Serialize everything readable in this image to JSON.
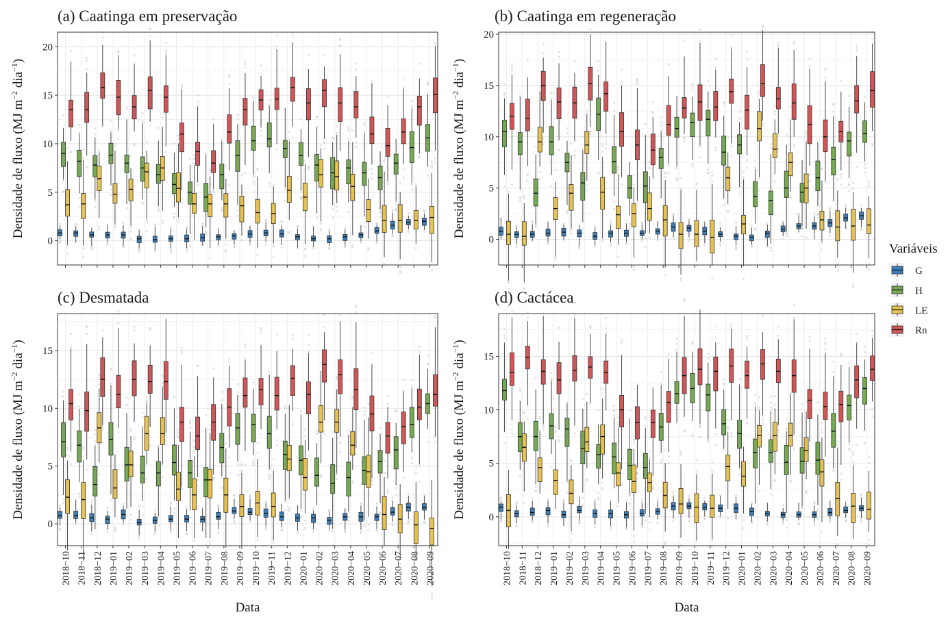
{
  "figure": {
    "legend_title": "Variáveis",
    "legend_items": [
      {
        "label": "G",
        "color": "#3f7fb8"
      },
      {
        "label": "H",
        "color": "#76a953"
      },
      {
        "label": "LE",
        "color": "#e6c254"
      },
      {
        "label": "Rn",
        "color": "#d35555"
      }
    ],
    "months": [
      "2018−10",
      "2018−11",
      "2018−12",
      "2019−01",
      "2019−02",
      "2019−03",
      "2019−04",
      "2019−05",
      "2019−06",
      "2019−07",
      "2019−08",
      "2019−09",
      "2019−10",
      "2019−11",
      "2019−12",
      "2020−01",
      "2020−02",
      "2020−03",
      "2020−04",
      "2020−05",
      "2020−06",
      "2020−07",
      "2020−08",
      "2020−09"
    ],
    "xlabel": "Data",
    "ylabel_main": "Densidade de fluxo",
    "ylabel_unit": "(MJ m",
    "ylabel_exp1": "−2",
    "ylabel_mid": " dia",
    "ylabel_exp2": "−1",
    "ylabel_end": ")"
  },
  "chart_data": [
    {
      "type": "box",
      "title": "(a) Caatinga em preservação",
      "ylim": [
        -2.5,
        21.5
      ],
      "yticks": [
        0,
        5,
        10,
        15,
        20
      ],
      "series": [
        {
          "name": "G",
          "medians": [
            0.8,
            0.8,
            0.6,
            0.6,
            0.6,
            0.2,
            0.1,
            0.2,
            0.2,
            0.3,
            0.4,
            0.5,
            0.7,
            0.8,
            0.7,
            0.4,
            0.2,
            0.2,
            0.4,
            0.6,
            1.0,
            1.6,
            1.9,
            2.0
          ]
        },
        {
          "name": "H",
          "medians": [
            9.0,
            8.2,
            7.8,
            8.8,
            8.0,
            7.5,
            6.8,
            5.8,
            5.0,
            4.5,
            6.8,
            8.8,
            10.3,
            10.5,
            9.5,
            8.8,
            7.8,
            7.0,
            7.5,
            7.0,
            6.5,
            8.0,
            9.6,
            10.6
          ]
        },
        {
          "name": "LE",
          "medians": [
            3.7,
            3.8,
            6.4,
            4.8,
            5.3,
            7.1,
            7.5,
            5.4,
            3.8,
            3.8,
            3.8,
            3.6,
            2.9,
            2.8,
            5.2,
            4.5,
            6.8,
            6.6,
            5.6,
            3.2,
            2.1,
            2.1,
            2.1,
            2.4
          ]
        },
        {
          "name": "Rn",
          "medians": [
            13.5,
            13.5,
            15.8,
            14.8,
            13.8,
            15.5,
            14.8,
            11.0,
            9.2,
            8.0,
            11.2,
            13.5,
            14.5,
            14.6,
            15.8,
            14.2,
            15.5,
            14.2,
            13.8,
            11.0,
            9.8,
            11.2,
            13.8,
            15.1
          ]
        }
      ]
    },
    {
      "type": "box",
      "title": "(b) Caatinga em regeneração",
      "ylim": [
        -2.5,
        20.2
      ],
      "yticks": [
        0,
        5,
        10,
        15,
        20
      ],
      "series": [
        {
          "name": "G",
          "medians": [
            0.8,
            0.5,
            0.5,
            0.6,
            0.7,
            0.6,
            0.3,
            0.6,
            0.6,
            0.6,
            0.8,
            1.2,
            1.1,
            0.8,
            0.5,
            0.3,
            0.2,
            0.6,
            1.0,
            1.3,
            1.3,
            1.6,
            2.1,
            2.3
          ]
        },
        {
          "name": "H",
          "medians": [
            10.5,
            9.5,
            4.5,
            9.5,
            7.5,
            5.5,
            12.2,
            7.6,
            5.0,
            5.2,
            8.0,
            10.8,
            11.4,
            11.7,
            8.5,
            9.2,
            4.2,
            3.8,
            5.0,
            4.6,
            6.0,
            7.8,
            9.6,
            10.3
          ]
        },
        {
          "name": "LE",
          "medians": [
            0.5,
            0.3,
            9.5,
            3.0,
            4.5,
            9.2,
            4.6,
            2.4,
            2.5,
            3.0,
            1.9,
            0.5,
            0.5,
            0.2,
            6.0,
            1.5,
            10.8,
            8.8,
            7.5,
            5.0,
            1.9,
            1.2,
            1.3,
            1.4
          ]
        },
        {
          "name": "Rn",
          "medians": [
            12.0,
            11.8,
            15.0,
            13.4,
            13.3,
            15.2,
            14.2,
            10.5,
            9.2,
            8.7,
            11.2,
            12.8,
            13.4,
            12.9,
            14.4,
            12.6,
            15.2,
            13.7,
            13.3,
            11.2,
            10.0,
            10.5,
            13.5,
            14.5
          ]
        }
      ]
    },
    {
      "type": "box",
      "title": "(c) Desmatada",
      "ylim": [
        -1.9,
        18.2
      ],
      "yticks": [
        0,
        5,
        10,
        15
      ],
      "series": [
        {
          "name": "G",
          "medians": [
            0.7,
            0.7,
            0.5,
            0.4,
            0.8,
            0.1,
            0.3,
            0.4,
            0.4,
            0.4,
            0.6,
            1.1,
            1.0,
            0.9,
            0.6,
            0.5,
            0.5,
            0.3,
            0.6,
            0.6,
            0.6,
            1.0,
            1.4,
            1.4
          ]
        },
        {
          "name": "H",
          "medians": [
            7.1,
            6.8,
            3.4,
            7.3,
            5.1,
            4.4,
            4.4,
            5.3,
            4.4,
            3.8,
            6.6,
            8.3,
            8.6,
            7.8,
            6.0,
            5.5,
            4.2,
            3.5,
            4.0,
            4.6,
            5.4,
            6.4,
            8.6,
            10.4
          ]
        },
        {
          "name": "LE",
          "medians": [
            2.3,
            2.1,
            8.3,
            3.1,
            5.1,
            7.8,
            7.8,
            3.0,
            2.5,
            3.8,
            2.5,
            1.5,
            1.8,
            1.5,
            5.6,
            4.0,
            8.8,
            8.8,
            6.8,
            4.5,
            0.8,
            0.4,
            -0.1,
            -0.4
          ]
        },
        {
          "name": "Rn",
          "medians": [
            10.4,
            9.8,
            12.5,
            11.2,
            12.5,
            12.3,
            12.3,
            8.8,
            7.6,
            8.8,
            10.1,
            11.1,
            11.6,
            11.1,
            12.6,
            11.2,
            13.8,
            12.9,
            11.6,
            9.5,
            7.6,
            8.4,
            10.1,
            11.2
          ]
        }
      ]
    },
    {
      "type": "box",
      "title": "(d) Cactácea",
      "ylim": [
        -2.7,
        19.0
      ],
      "yticks": [
        0,
        5,
        10,
        15
      ],
      "series": [
        {
          "name": "G",
          "medians": [
            0.9,
            0.3,
            0.4,
            0.6,
            0.2,
            0.6,
            0.3,
            0.3,
            0.2,
            0.3,
            0.5,
            1.0,
            1.0,
            0.9,
            0.8,
            0.8,
            0.5,
            0.3,
            0.2,
            0.2,
            0.2,
            0.4,
            0.6,
            0.8
          ]
        },
        {
          "name": "H",
          "medians": [
            11.8,
            7.5,
            7.5,
            8.5,
            8.2,
            6.4,
            5.8,
            5.6,
            4.8,
            4.6,
            8.4,
            11.5,
            12.0,
            11.4,
            8.7,
            7.8,
            6.0,
            6.0,
            5.1,
            5.2,
            5.3,
            8.0,
            10.4,
            12.0
          ]
        },
        {
          "name": "LE",
          "medians": [
            0.6,
            6.5,
            4.6,
            3.4,
            2.2,
            7.0,
            7.5,
            4.1,
            3.3,
            3.2,
            2.0,
            1.2,
            0.9,
            0.8,
            4.7,
            3.8,
            7.6,
            7.6,
            7.6,
            6.2,
            4.2,
            1.7,
            1.0,
            0.7
          ]
        },
        {
          "name": "Rn",
          "medians": [
            13.5,
            14.9,
            13.6,
            12.8,
            13.7,
            14.0,
            13.5,
            10.0,
            8.8,
            8.8,
            10.7,
            13.2,
            13.8,
            13.6,
            14.1,
            13.2,
            14.3,
            13.6,
            13.2,
            10.9,
            10.3,
            10.5,
            12.8,
            13.8
          ]
        }
      ]
    }
  ]
}
